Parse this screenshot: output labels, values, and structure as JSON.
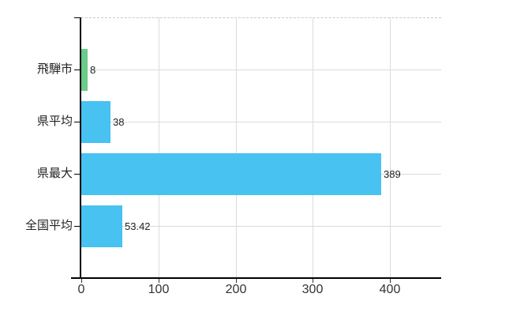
{
  "chart_data": {
    "type": "bar",
    "orientation": "horizontal",
    "title": "",
    "xlabel": "",
    "ylabel": "",
    "categories": [
      "飛騨市",
      "県平均",
      "県最大",
      "全国平均"
    ],
    "values": [
      8,
      38,
      389,
      53.42
    ],
    "value_labels": [
      "8",
      "38",
      "389",
      "53.42"
    ],
    "x_ticks": [
      0,
      100,
      200,
      300,
      400
    ],
    "x_tick_labels": [
      "0",
      "100",
      "200",
      "300",
      "400"
    ],
    "xlim": [
      0,
      466
    ],
    "grid": true,
    "legend_position": "none",
    "bar_colors": [
      "#6bcb88",
      "#47c2f1",
      "#47c2f1",
      "#47c2f1"
    ],
    "colors": {
      "green_bar": "#6bcb88",
      "blue_bar": "#47c2f1",
      "axis": "#000000",
      "horizontal_gridline": "#d6ded2",
      "vertical_gridline": "#dcdcdc",
      "top_border": "#c9c9c9",
      "text": "#222222"
    }
  }
}
